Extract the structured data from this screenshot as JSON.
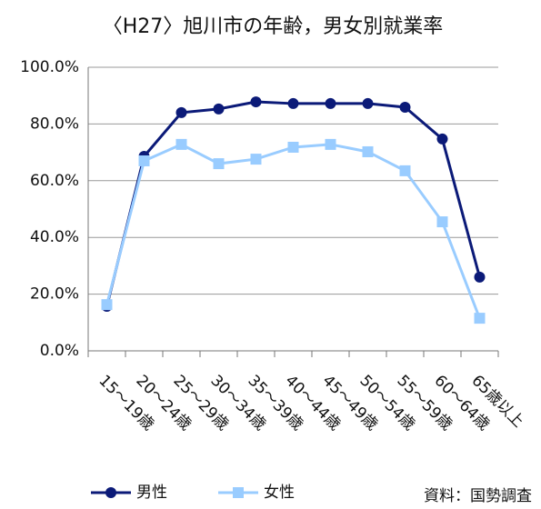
{
  "chart_data": {
    "type": "line",
    "title": "〈H27〉旭川市の年齢，男女別就業率",
    "categories": [
      "15～19歳",
      "20～24歳",
      "25～29歳",
      "30～34歳",
      "35～39歳",
      "40～44歳",
      "45～49歳",
      "50～54歳",
      "55～59歳",
      "60～64歳",
      "65歳以上"
    ],
    "series": [
      {
        "name": "男性",
        "color": "#0b1a78",
        "marker": "circle",
        "values": [
          15.7,
          68.6,
          84.0,
          85.3,
          87.8,
          87.2,
          87.2,
          87.2,
          85.9,
          74.7,
          26.0
        ]
      },
      {
        "name": "女性",
        "color": "#99ccff",
        "marker": "square",
        "values": [
          16.3,
          67.0,
          72.8,
          66.0,
          67.6,
          71.8,
          72.8,
          70.2,
          63.5,
          45.5,
          11.5
        ]
      }
    ],
    "ylim": [
      0,
      100
    ],
    "yticks": [
      {
        "value": 0,
        "label": "0.0%"
      },
      {
        "value": 20,
        "label": "20.0%"
      },
      {
        "value": 40,
        "label": "40.0%"
      },
      {
        "value": 60,
        "label": "60.0%"
      },
      {
        "value": 80,
        "label": "80.0%"
      },
      {
        "value": 100,
        "label": "100.0%"
      }
    ],
    "grid": true,
    "legend": "bottom",
    "source": "資料：国勢調査"
  }
}
